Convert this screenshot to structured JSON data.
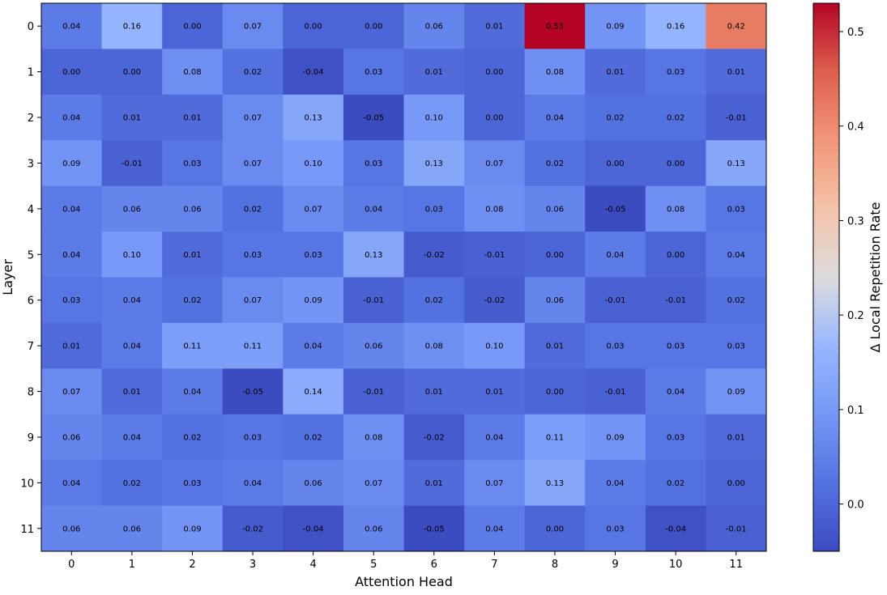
{
  "chart_data": {
    "type": "heatmap",
    "title": "",
    "xlabel": "Attention Head",
    "ylabel": "Layer",
    "x_categories": [
      "0",
      "1",
      "2",
      "3",
      "4",
      "5",
      "6",
      "7",
      "8",
      "9",
      "10",
      "11"
    ],
    "y_categories": [
      "0",
      "1",
      "2",
      "3",
      "4",
      "5",
      "6",
      "7",
      "8",
      "9",
      "10",
      "11"
    ],
    "values": [
      [
        0.04,
        0.16,
        -0.0,
        0.07,
        -0.0,
        0.0,
        0.06,
        0.01,
        0.53,
        0.09,
        0.16,
        0.42
      ],
      [
        -0.0,
        0.0,
        0.08,
        0.02,
        -0.04,
        0.03,
        0.01,
        0.0,
        0.08,
        0.01,
        0.03,
        0.01
      ],
      [
        0.04,
        0.01,
        0.01,
        0.07,
        0.13,
        -0.05,
        0.1,
        -0.0,
        0.04,
        0.02,
        0.02,
        -0.01
      ],
      [
        0.09,
        -0.01,
        0.03,
        0.07,
        0.1,
        0.03,
        0.13,
        0.07,
        0.02,
        -0.0,
        -0.0,
        0.13
      ],
      [
        0.04,
        0.06,
        0.06,
        0.02,
        0.07,
        0.04,
        0.03,
        0.08,
        0.06,
        -0.05,
        0.08,
        0.03
      ],
      [
        0.04,
        0.1,
        0.01,
        0.03,
        0.03,
        0.13,
        -0.02,
        -0.01,
        0.0,
        0.04,
        0.0,
        0.04
      ],
      [
        0.03,
        0.04,
        0.02,
        0.07,
        0.09,
        -0.01,
        0.02,
        -0.02,
        0.06,
        -0.01,
        -0.01,
        0.02
      ],
      [
        0.01,
        0.04,
        0.11,
        0.11,
        0.04,
        0.06,
        0.08,
        0.1,
        0.01,
        0.03,
        0.03,
        0.03
      ],
      [
        0.07,
        0.01,
        0.04,
        -0.05,
        0.14,
        -0.01,
        0.01,
        0.01,
        -0.0,
        -0.01,
        0.04,
        0.09
      ],
      [
        0.06,
        0.04,
        0.02,
        0.03,
        0.02,
        0.08,
        -0.02,
        0.04,
        0.11,
        0.09,
        0.03,
        0.01
      ],
      [
        0.04,
        0.02,
        0.03,
        0.04,
        0.06,
        0.07,
        0.01,
        0.07,
        0.13,
        0.04,
        0.02,
        -0.0
      ],
      [
        0.06,
        0.06,
        0.09,
        -0.02,
        -0.04,
        0.06,
        -0.05,
        0.04,
        -0.0,
        0.03,
        -0.04,
        -0.01
      ]
    ],
    "colorbar": {
      "label": "Δ Local Repetition Rate",
      "min": -0.05,
      "max": 0.53,
      "ticks": [
        0.0,
        0.1,
        0.2,
        0.3,
        0.4,
        0.5
      ],
      "tick_labels": [
        "0.0",
        "0.1",
        "0.2",
        "0.3",
        "0.4",
        "0.5"
      ],
      "colormap": "coolwarm"
    },
    "grid": false,
    "legend": "colorbar-right"
  }
}
